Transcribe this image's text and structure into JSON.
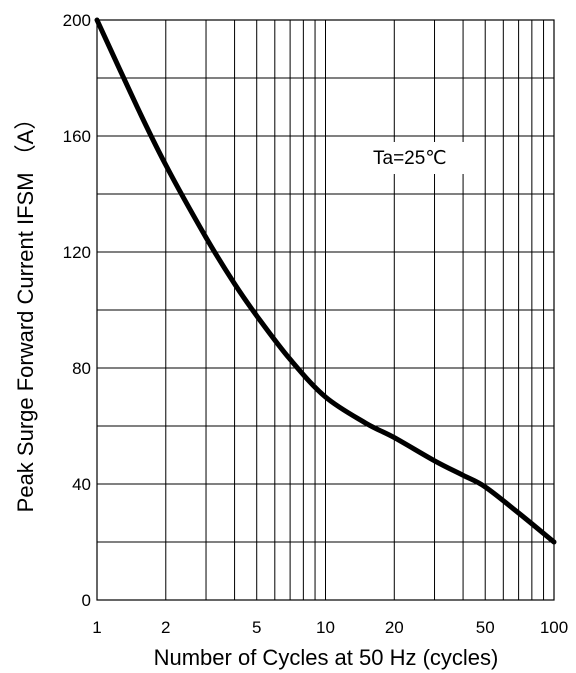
{
  "chart_data": {
    "type": "line",
    "xlabel": "Number of Cycles at 50 Hz (cycles)",
    "ylabel": "Peak Surge Forward Current IFSM （A）",
    "x_scale": "log",
    "xlim": [
      1,
      100
    ],
    "ylim": [
      0,
      200
    ],
    "x_ticks": [
      1,
      2,
      5,
      10,
      20,
      50,
      100
    ],
    "x_tick_labels": [
      "1",
      "2",
      "5",
      "10",
      "20",
      "50",
      "100"
    ],
    "y_ticks": [
      0,
      40,
      80,
      120,
      160,
      200
    ],
    "y_tick_labels": [
      "0",
      "40",
      "80",
      "120",
      "160",
      "200"
    ],
    "x_gridlines": [
      1,
      2,
      3,
      4,
      5,
      6,
      7,
      8,
      9,
      10,
      20,
      30,
      40,
      50,
      60,
      70,
      80,
      90,
      100
    ],
    "y_gridlines": [
      0,
      20,
      40,
      60,
      80,
      100,
      120,
      140,
      160,
      180,
      200
    ],
    "grid": true,
    "annotation": "Ta=25℃",
    "series": [
      {
        "x": [
          1,
          1.5,
          2,
          3,
          4,
          5,
          7,
          10,
          15,
          20,
          30,
          40,
          50,
          70,
          100
        ],
        "y": [
          200,
          170,
          150,
          125,
          109,
          98,
          83,
          70,
          61,
          56,
          48,
          43,
          39,
          30,
          20
        ]
      }
    ]
  }
}
